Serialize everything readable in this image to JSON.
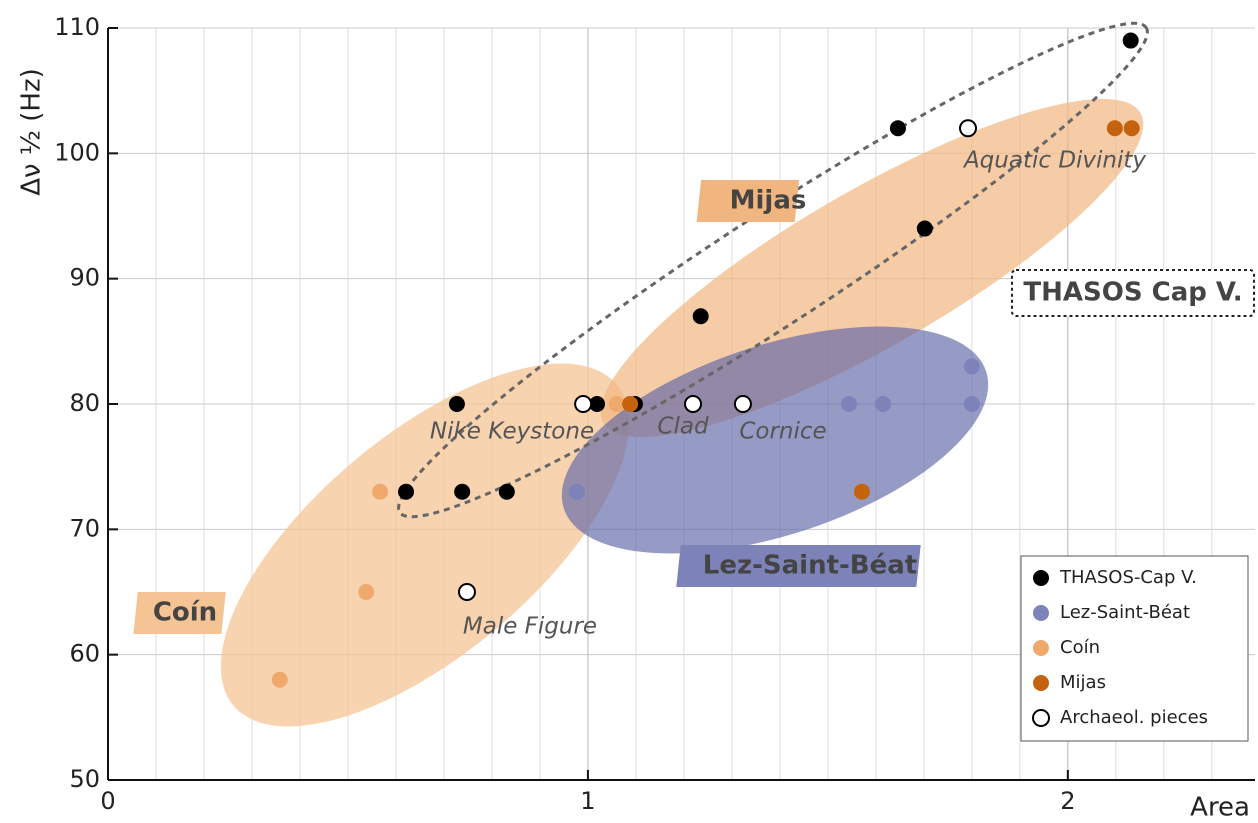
{
  "chart_data": {
    "type": "scatter",
    "xlabel": "Area",
    "ylabel": "Δν ½ (Hz)",
    "xlim": [
      0,
      2.39
    ],
    "ylim": [
      50,
      110
    ],
    "xticks": [
      0,
      1,
      2
    ],
    "yticks": [
      50,
      60,
      70,
      80,
      90,
      100,
      110
    ],
    "grid": true,
    "legend": "lower right",
    "annotations": [
      "Mijas",
      "THASOS Cap V.",
      "Lez-Saint-Béat",
      "Coín",
      "Nike Keystone",
      "Clad",
      "Cornice",
      "Male Figure",
      "Aquatic Divinity"
    ],
    "series": [
      {
        "name": "THASOS-Cap V.",
        "color": "#000000",
        "x": [
          0.727,
          0.621,
          0.738,
          0.831,
          1.019,
          1.098,
          1.235,
          1.646,
          1.702,
          2.131
        ],
        "values": [
          80,
          73,
          73,
          73,
          80,
          80,
          87,
          102,
          94,
          109
        ]
      },
      {
        "name": "Lez-Saint-Béat",
        "color": "#7d82b8",
        "x": [
          0.977,
          1.544,
          1.615,
          1.8,
          1.8
        ],
        "values": [
          73,
          80,
          80,
          80,
          83
        ]
      },
      {
        "name": "Coín",
        "color": "#f0a96c",
        "x": [
          0.567,
          0.538,
          0.358,
          1.06
        ],
        "values": [
          73,
          65,
          58,
          80
        ]
      },
      {
        "name": "Mijas",
        "color": "#c4620e",
        "x": [
          1.088,
          1.571,
          2.098,
          2.133
        ],
        "values": [
          80,
          73,
          102,
          102
        ]
      },
      {
        "name": "Archaeol. pieces",
        "color": "#ffffff",
        "edgecolor": "#000000",
        "x": [
          0.748,
          0.99,
          1.219,
          1.323,
          1.792
        ],
        "values": [
          65,
          80,
          80,
          80,
          102
        ]
      }
    ]
  }
}
